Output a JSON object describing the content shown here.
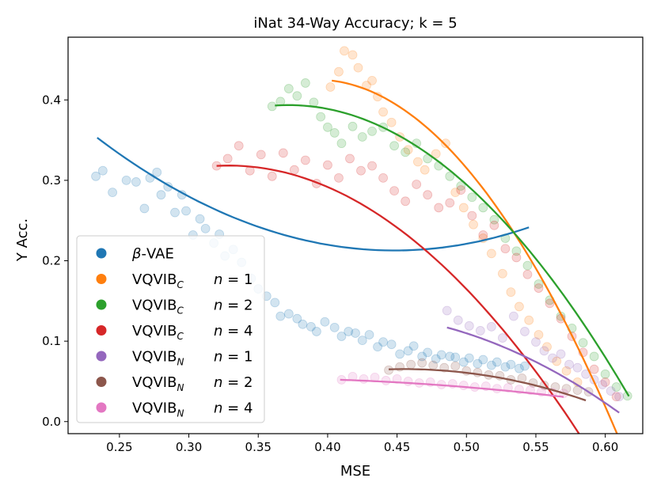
{
  "chart_data": {
    "type": "scatter",
    "title": "iNat 34-Way Accuracy; k = 5",
    "xlabel": "MSE",
    "ylabel": "Y Acc.",
    "xlim": [
      0.213,
      0.627
    ],
    "ylim": [
      -0.015,
      0.478
    ],
    "xticks": [
      0.25,
      0.3,
      0.35,
      0.4,
      0.45,
      0.5,
      0.55,
      0.6
    ],
    "xtick_labels": [
      "0.25",
      "0.30",
      "0.35",
      "0.40",
      "0.45",
      "0.50",
      "0.55",
      "0.60"
    ],
    "yticks": [
      0.0,
      0.1,
      0.2,
      0.3,
      0.4
    ],
    "ytick_labels": [
      "0.0",
      "0.1",
      "0.2",
      "0.3",
      "0.4"
    ],
    "legend_position": "lower-left",
    "series": [
      {
        "name": "β-VAE",
        "legend_base": "β-VAE",
        "legend_sub": "",
        "legend_n": "",
        "color": "#1f77b4",
        "points": [
          [
            0.233,
            0.305
          ],
          [
            0.238,
            0.312
          ],
          [
            0.245,
            0.285
          ],
          [
            0.255,
            0.3
          ],
          [
            0.262,
            0.298
          ],
          [
            0.268,
            0.265
          ],
          [
            0.272,
            0.303
          ],
          [
            0.277,
            0.31
          ],
          [
            0.28,
            0.282
          ],
          [
            0.285,
            0.292
          ],
          [
            0.29,
            0.26
          ],
          [
            0.295,
            0.282
          ],
          [
            0.298,
            0.262
          ],
          [
            0.303,
            0.232
          ],
          [
            0.308,
            0.252
          ],
          [
            0.312,
            0.24
          ],
          [
            0.318,
            0.222
          ],
          [
            0.322,
            0.233
          ],
          [
            0.326,
            0.206
          ],
          [
            0.332,
            0.214
          ],
          [
            0.338,
            0.198
          ],
          [
            0.345,
            0.178
          ],
          [
            0.35,
            0.165
          ],
          [
            0.356,
            0.156
          ],
          [
            0.362,
            0.148
          ],
          [
            0.366,
            0.131
          ],
          [
            0.372,
            0.134
          ],
          [
            0.378,
            0.128
          ],
          [
            0.382,
            0.121
          ],
          [
            0.388,
            0.118
          ],
          [
            0.392,
            0.112
          ],
          [
            0.398,
            0.124
          ],
          [
            0.405,
            0.117
          ],
          [
            0.41,
            0.106
          ],
          [
            0.415,
            0.112
          ],
          [
            0.42,
            0.11
          ],
          [
            0.425,
            0.101
          ],
          [
            0.43,
            0.108
          ],
          [
            0.436,
            0.093
          ],
          [
            0.44,
            0.099
          ],
          [
            0.446,
            0.096
          ],
          [
            0.452,
            0.084
          ],
          [
            0.458,
            0.088
          ],
          [
            0.462,
            0.094
          ],
          [
            0.468,
            0.081
          ],
          [
            0.472,
            0.086
          ],
          [
            0.478,
            0.078
          ],
          [
            0.482,
            0.083
          ],
          [
            0.488,
            0.081
          ],
          [
            0.492,
            0.08
          ],
          [
            0.498,
            0.074
          ],
          [
            0.502,
            0.079
          ],
          [
            0.508,
            0.072
          ],
          [
            0.512,
            0.077
          ],
          [
            0.518,
            0.07
          ],
          [
            0.522,
            0.074
          ],
          [
            0.528,
            0.068
          ],
          [
            0.532,
            0.071
          ],
          [
            0.538,
            0.066
          ],
          [
            0.542,
            0.069
          ]
        ],
        "fit_x": [
          0.234,
          0.545
        ],
        "fit_coef": [
          0.353,
          -1.31,
          3.06
        ]
      },
      {
        "name": "VQVIB_C n = 1",
        "legend_base": "VQVIB",
        "legend_sub": "C",
        "legend_n": "n = 1",
        "color": "#ff7f0e",
        "points": [
          [
            0.402,
            0.416
          ],
          [
            0.408,
            0.435
          ],
          [
            0.412,
            0.461
          ],
          [
            0.418,
            0.456
          ],
          [
            0.422,
            0.44
          ],
          [
            0.428,
            0.418
          ],
          [
            0.432,
            0.424
          ],
          [
            0.436,
            0.404
          ],
          [
            0.44,
            0.385
          ],
          [
            0.446,
            0.372
          ],
          [
            0.452,
            0.354
          ],
          [
            0.458,
            0.338
          ],
          [
            0.465,
            0.323
          ],
          [
            0.47,
            0.313
          ],
          [
            0.478,
            0.333
          ],
          [
            0.485,
            0.346
          ],
          [
            0.492,
            0.285
          ],
          [
            0.498,
            0.266
          ],
          [
            0.505,
            0.245
          ],
          [
            0.512,
            0.228
          ],
          [
            0.518,
            0.209
          ],
          [
            0.526,
            0.184
          ],
          [
            0.532,
            0.161
          ],
          [
            0.538,
            0.143
          ],
          [
            0.545,
            0.126
          ],
          [
            0.552,
            0.108
          ],
          [
            0.558,
            0.093
          ],
          [
            0.565,
            0.075
          ],
          [
            0.572,
            0.063
          ],
          [
            0.58,
            0.049
          ]
        ],
        "fit_x": [
          0.403,
          0.612
        ],
        "fit_coef": [
          0.424,
          -0.21,
          -9.38
        ]
      },
      {
        "name": "VQVIB_C n = 2",
        "legend_base": "VQVIB",
        "legend_sub": "C",
        "legend_n": "n = 2",
        "color": "#2ca02c",
        "points": [
          [
            0.36,
            0.392
          ],
          [
            0.366,
            0.398
          ],
          [
            0.372,
            0.414
          ],
          [
            0.378,
            0.405
          ],
          [
            0.384,
            0.421
          ],
          [
            0.39,
            0.397
          ],
          [
            0.395,
            0.379
          ],
          [
            0.4,
            0.366
          ],
          [
            0.405,
            0.359
          ],
          [
            0.41,
            0.346
          ],
          [
            0.418,
            0.367
          ],
          [
            0.425,
            0.354
          ],
          [
            0.432,
            0.361
          ],
          [
            0.44,
            0.366
          ],
          [
            0.448,
            0.343
          ],
          [
            0.456,
            0.335
          ],
          [
            0.464,
            0.346
          ],
          [
            0.472,
            0.327
          ],
          [
            0.48,
            0.318
          ],
          [
            0.488,
            0.305
          ],
          [
            0.496,
            0.293
          ],
          [
            0.504,
            0.279
          ],
          [
            0.512,
            0.266
          ],
          [
            0.52,
            0.251
          ],
          [
            0.528,
            0.228
          ],
          [
            0.536,
            0.212
          ],
          [
            0.544,
            0.194
          ],
          [
            0.552,
            0.171
          ],
          [
            0.56,
            0.151
          ],
          [
            0.568,
            0.131
          ],
          [
            0.576,
            0.116
          ],
          [
            0.584,
            0.098
          ],
          [
            0.592,
            0.081
          ],
          [
            0.6,
            0.059
          ],
          [
            0.608,
            0.043
          ],
          [
            0.616,
            0.032
          ]
        ],
        "fit_x": [
          0.362,
          0.617
        ],
        "fit_coef": [
          0.393,
          0.12,
          -6.03
        ]
      },
      {
        "name": "VQVIB_C n = 4",
        "legend_base": "VQVIB",
        "legend_sub": "C",
        "legend_n": "n = 4",
        "color": "#d62728",
        "points": [
          [
            0.32,
            0.318
          ],
          [
            0.328,
            0.327
          ],
          [
            0.336,
            0.343
          ],
          [
            0.344,
            0.312
          ],
          [
            0.352,
            0.332
          ],
          [
            0.36,
            0.305
          ],
          [
            0.368,
            0.334
          ],
          [
            0.376,
            0.313
          ],
          [
            0.384,
            0.325
          ],
          [
            0.392,
            0.296
          ],
          [
            0.4,
            0.319
          ],
          [
            0.408,
            0.303
          ],
          [
            0.416,
            0.327
          ],
          [
            0.424,
            0.312
          ],
          [
            0.432,
            0.318
          ],
          [
            0.44,
            0.303
          ],
          [
            0.448,
            0.287
          ],
          [
            0.456,
            0.274
          ],
          [
            0.464,
            0.295
          ],
          [
            0.472,
            0.282
          ],
          [
            0.48,
            0.266
          ],
          [
            0.488,
            0.272
          ],
          [
            0.496,
            0.288
          ],
          [
            0.504,
            0.256
          ],
          [
            0.512,
            0.232
          ],
          [
            0.52,
            0.244
          ],
          [
            0.528,
            0.215
          ],
          [
            0.536,
            0.204
          ],
          [
            0.544,
            0.183
          ],
          [
            0.552,
            0.166
          ],
          [
            0.56,
            0.147
          ],
          [
            0.568,
            0.128
          ],
          [
            0.576,
            0.106
          ],
          [
            0.584,
            0.086
          ],
          [
            0.592,
            0.065
          ],
          [
            0.6,
            0.049
          ],
          [
            0.608,
            0.031
          ]
        ],
        "fit_x": [
          0.32,
          0.615
        ],
        "fit_coef": [
          0.318,
          0.09,
          -5.23
        ]
      },
      {
        "name": "VQVIB_N n = 1",
        "legend_base": "VQVIB",
        "legend_sub": "N",
        "legend_n": "n = 1",
        "color": "#9467bd",
        "points": [
          [
            0.486,
            0.138
          ],
          [
            0.494,
            0.126
          ],
          [
            0.502,
            0.119
          ],
          [
            0.51,
            0.113
          ],
          [
            0.518,
            0.118
          ],
          [
            0.526,
            0.104
          ],
          [
            0.534,
            0.131
          ],
          [
            0.542,
            0.112
          ],
          [
            0.55,
            0.099
          ],
          [
            0.556,
            0.088
          ],
          [
            0.562,
            0.079
          ],
          [
            0.568,
            0.084
          ],
          [
            0.574,
            0.071
          ],
          [
            0.58,
            0.067
          ],
          [
            0.586,
            0.059
          ],
          [
            0.592,
            0.052
          ],
          [
            0.598,
            0.046
          ],
          [
            0.604,
            0.038
          ],
          [
            0.61,
            0.031
          ]
        ],
        "fit_x": [
          0.486,
          0.61
        ],
        "fit_coef": [
          0.117,
          -0.47,
          -3.1
        ]
      },
      {
        "name": "VQVIB_N n = 2",
        "legend_base": "VQVIB",
        "legend_sub": "N",
        "legend_n": "n = 2",
        "color": "#8c564b",
        "points": [
          [
            0.444,
            0.064
          ],
          [
            0.452,
            0.068
          ],
          [
            0.46,
            0.071
          ],
          [
            0.468,
            0.073
          ],
          [
            0.476,
            0.07
          ],
          [
            0.484,
            0.067
          ],
          [
            0.492,
            0.069
          ],
          [
            0.5,
            0.063
          ],
          [
            0.508,
            0.061
          ],
          [
            0.516,
            0.058
          ],
          [
            0.524,
            0.057
          ],
          [
            0.532,
            0.052
          ],
          [
            0.54,
            0.054
          ],
          [
            0.548,
            0.048
          ],
          [
            0.556,
            0.045
          ],
          [
            0.564,
            0.043
          ],
          [
            0.572,
            0.041
          ],
          [
            0.58,
            0.039
          ],
          [
            0.588,
            0.037
          ]
        ],
        "fit_x": [
          0.444,
          0.586
        ],
        "fit_coef": [
          0.065,
          0.05,
          -2.27
        ]
      },
      {
        "name": "VQVIB_N n = 4",
        "legend_base": "VQVIB",
        "legend_sub": "N",
        "legend_n": "n = 4",
        "color": "#e377c2",
        "points": [
          [
            0.41,
            0.052
          ],
          [
            0.418,
            0.056
          ],
          [
            0.426,
            0.053
          ],
          [
            0.434,
            0.055
          ],
          [
            0.442,
            0.051
          ],
          [
            0.45,
            0.053
          ],
          [
            0.458,
            0.05
          ],
          [
            0.466,
            0.048
          ],
          [
            0.474,
            0.049
          ],
          [
            0.482,
            0.046
          ],
          [
            0.49,
            0.047
          ],
          [
            0.498,
            0.045
          ],
          [
            0.506,
            0.043
          ],
          [
            0.514,
            0.044
          ],
          [
            0.522,
            0.041
          ],
          [
            0.53,
            0.042
          ],
          [
            0.538,
            0.04
          ],
          [
            0.546,
            0.039
          ],
          [
            0.554,
            0.037
          ],
          [
            0.562,
            0.036
          ],
          [
            0.57,
            0.035
          ]
        ],
        "fit_x": [
          0.409,
          0.57
        ],
        "fit_coef": [
          0.052,
          -0.06,
          -0.45
        ]
      }
    ]
  }
}
